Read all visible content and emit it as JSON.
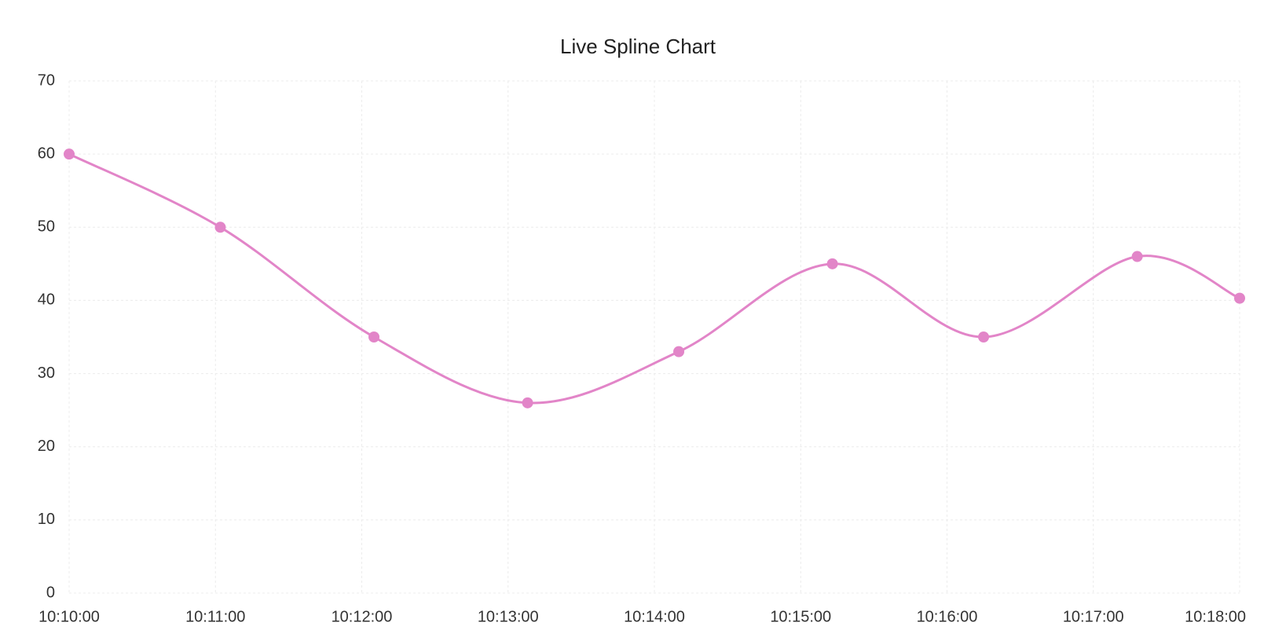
{
  "chart_data": {
    "type": "line",
    "title": "Live Spline Chart",
    "x": [
      "10:10:00",
      "10:11:02",
      "10:12:05",
      "10:13:08",
      "10:14:10",
      "10:15:13",
      "10:16:15",
      "10:17:18",
      "10:18:00"
    ],
    "series": [
      {
        "color": "#e285c8",
        "values": [
          60,
          50,
          35,
          26,
          33,
          45,
          35,
          46,
          40.3
        ]
      }
    ],
    "xlim": [
      "10:10:00",
      "10:18:00"
    ],
    "xticks": [
      "10:10:00",
      "10:11:00",
      "10:12:00",
      "10:13:00",
      "10:14:00",
      "10:15:00",
      "10:16:00",
      "10:17:00",
      "10:18:00"
    ],
    "ylim": [
      0,
      70
    ],
    "yticks": [
      0,
      10,
      20,
      30,
      40,
      50,
      60,
      70
    ],
    "grid": true,
    "smooth": true
  }
}
